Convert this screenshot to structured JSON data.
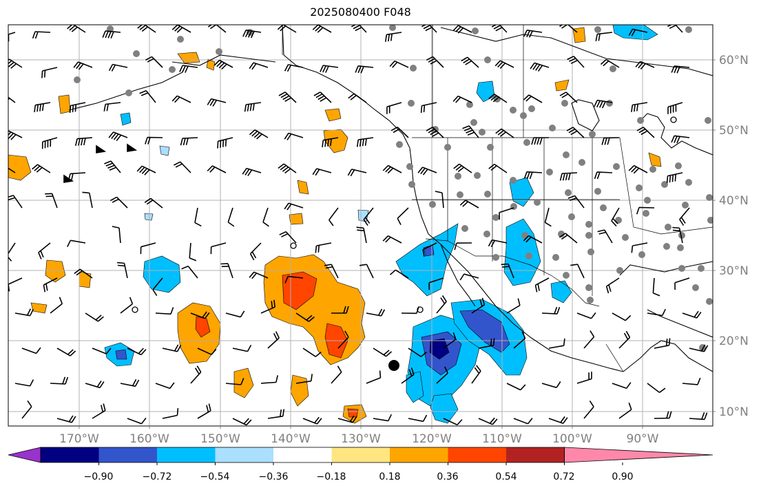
{
  "map": {
    "title": "2025080400 F048",
    "lon_labels": [
      "170°W",
      "160°W",
      "150°W",
      "140°W",
      "130°W",
      "120°W",
      "110°W",
      "100°W",
      "90°W"
    ],
    "lat_labels": [
      "60°N",
      "50°N",
      "40°N",
      "30°N",
      "20°N",
      "10°N"
    ],
    "label_color": "#808080",
    "grid_color": "#b0b0b0"
  },
  "colorbar": {
    "tick_labels": [
      "−0.90",
      "−0.72",
      "−0.54",
      "−0.36",
      "−0.18",
      "0.18",
      "0.36",
      "0.54",
      "0.72",
      "0.90"
    ],
    "colors": [
      "#9933cc",
      "#000080",
      "#3355cc",
      "#00bfff",
      "#aadfff",
      "#ffffff",
      "#ffe680",
      "#ffa500",
      "#ff4500",
      "#b22222",
      "#ff88aa"
    ]
  }
}
